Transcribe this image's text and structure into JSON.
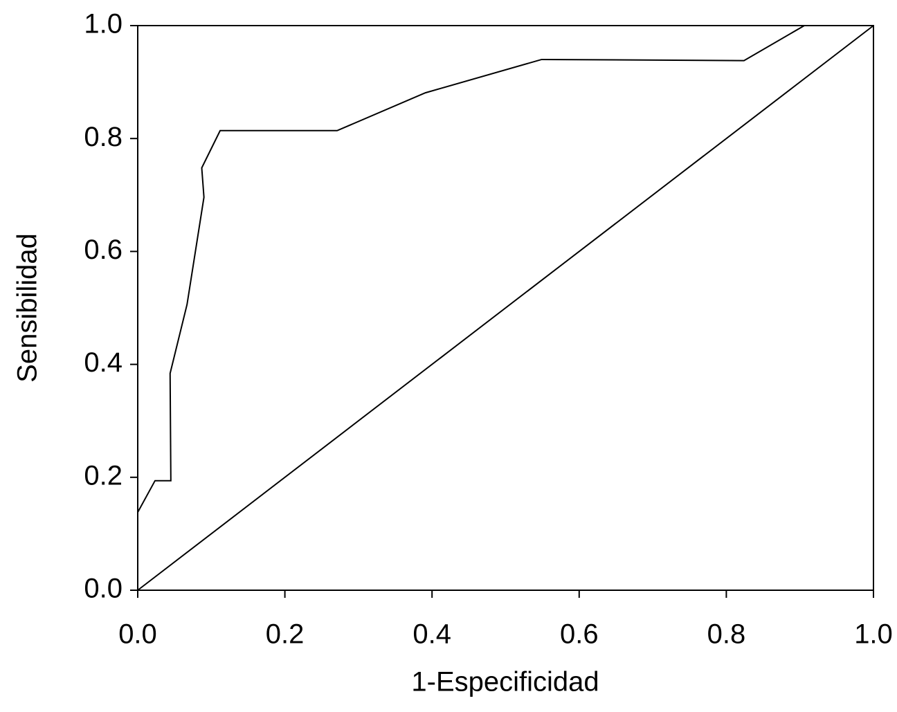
{
  "chart_data": {
    "type": "line",
    "x_label": "1-Especificidad",
    "y_label": "Sensibilidad",
    "xlim": [
      0,
      1
    ],
    "ylim": [
      0,
      1
    ],
    "xticks": [
      {
        "value": 0,
        "label": "0.0"
      },
      0.2,
      0.4,
      0.6,
      0.8,
      {
        "value": 1,
        "label": "1.0"
      }
    ],
    "yticks": [
      {
        "value": 0,
        "label": "0.0"
      },
      0.2,
      0.4,
      0.6,
      0.8,
      {
        "value": 1,
        "label": "1.0"
      }
    ],
    "grid": false,
    "series": [
      {
        "color": "#000000",
        "x": [
          0,
          0.0235,
          0.045,
          0.044,
          0.067,
          0.09,
          0.087,
          0.112,
          0.271,
          0.391,
          0.549,
          0.824,
          0.906,
          1.0
        ],
        "values": [
          0.138,
          0.194,
          0.194,
          0.384,
          0.506,
          0.696,
          0.748,
          0.814,
          0.814,
          0.881,
          0.94,
          0.938,
          1.0,
          1.0
        ]
      },
      {
        "color": "#000000",
        "x": [
          0,
          1
        ],
        "values": [
          0,
          1
        ]
      }
    ]
  }
}
